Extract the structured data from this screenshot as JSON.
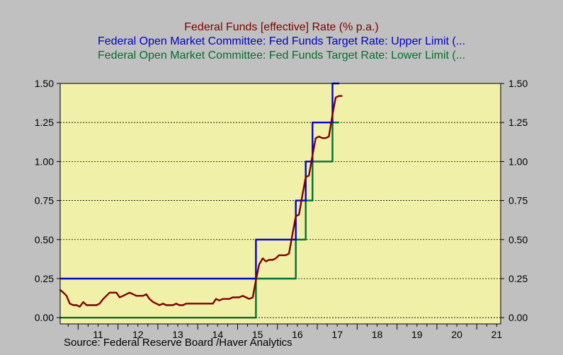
{
  "colors": {
    "background": "#c0c0c0",
    "plot_background": "#f0f0a8",
    "effective_rate": "#800000",
    "upper_limit": "#0000cc",
    "lower_limit": "#007030",
    "gridline": "#000000"
  },
  "legend": {
    "line1": "Federal Funds [effective] Rate  (% p.a.)",
    "line2": "Federal Open Market Committee: Fed Funds Target Rate: Upper Limit (...",
    "line3": "Federal Open Market Committee: Fed Funds Target Rate: Lower Limit (..."
  },
  "source": "Source:  Federal Reserve Board /Haver Analytics",
  "chart_data": {
    "type": "line",
    "title": "",
    "xlabel": "",
    "ylabel": "",
    "xlim": [
      2010.55,
      2021.6
    ],
    "ylim": [
      -0.04,
      1.5
    ],
    "grid": "horizontal dashed",
    "legend_position": "top",
    "x_ticks": [
      "11",
      "12",
      "13",
      "14",
      "15",
      "16",
      "17",
      "18",
      "19",
      "20",
      "21"
    ],
    "y_ticks_left": [
      "0.00",
      "0.25",
      "0.50",
      "0.75",
      "1.00",
      "1.25",
      "1.50"
    ],
    "y_ticks_right": [
      "0.00",
      "0.25",
      "0.50",
      "0.75",
      "1.00",
      "1.25",
      "1.50"
    ],
    "series": [
      {
        "name": "Federal Funds [effective] Rate  (% p.a.)",
        "color": "#800000",
        "x": [
          2010.54,
          2010.63,
          2010.71,
          2010.79,
          2010.88,
          2010.96,
          2011.04,
          2011.13,
          2011.21,
          2011.29,
          2011.38,
          2011.46,
          2011.54,
          2011.63,
          2011.71,
          2011.79,
          2011.88,
          2011.96,
          2012.04,
          2012.13,
          2012.21,
          2012.29,
          2012.38,
          2012.46,
          2012.54,
          2012.63,
          2012.71,
          2012.79,
          2012.88,
          2012.96,
          2013.04,
          2013.13,
          2013.21,
          2013.29,
          2013.38,
          2013.46,
          2013.54,
          2013.63,
          2013.71,
          2013.79,
          2013.88,
          2013.96,
          2014.04,
          2014.13,
          2014.21,
          2014.29,
          2014.38,
          2014.46,
          2014.54,
          2014.63,
          2014.71,
          2014.79,
          2014.88,
          2014.96,
          2015.04,
          2015.13,
          2015.21,
          2015.29,
          2015.38,
          2015.46,
          2015.54,
          2015.63,
          2015.71,
          2015.79,
          2015.88,
          2015.96,
          2016.04,
          2016.13,
          2016.21,
          2016.29,
          2016.38,
          2016.46,
          2016.54,
          2016.63,
          2016.71,
          2016.79,
          2016.88,
          2016.96,
          2017.04,
          2017.13,
          2017.21,
          2017.29,
          2017.38,
          2017.46,
          2017.54,
          2017.63
        ],
        "values": [
          0.18,
          0.16,
          0.14,
          0.09,
          0.08,
          0.08,
          0.07,
          0.1,
          0.08,
          0.08,
          0.08,
          0.08,
          0.09,
          0.12,
          0.14,
          0.16,
          0.16,
          0.16,
          0.13,
          0.14,
          0.15,
          0.16,
          0.15,
          0.14,
          0.14,
          0.14,
          0.15,
          0.12,
          0.1,
          0.09,
          0.08,
          0.09,
          0.08,
          0.08,
          0.08,
          0.09,
          0.08,
          0.08,
          0.09,
          0.09,
          0.09,
          0.09,
          0.09,
          0.09,
          0.09,
          0.09,
          0.09,
          0.12,
          0.11,
          0.12,
          0.12,
          0.12,
          0.13,
          0.13,
          0.13,
          0.14,
          0.13,
          0.12,
          0.13,
          0.24,
          0.34,
          0.38,
          0.36,
          0.37,
          0.37,
          0.38,
          0.4,
          0.4,
          0.4,
          0.41,
          0.54,
          0.65,
          0.66,
          0.79,
          0.9,
          0.91,
          1.04,
          1.15,
          1.16,
          1.15,
          1.15,
          1.16,
          1.3,
          1.41,
          1.42,
          1.42
        ]
      },
      {
        "name": "Federal Open Market Committee: Fed Funds Target Rate: Upper Limit (...",
        "color": "#0000cc",
        "x": [
          2010.54,
          2015.46,
          2015.46,
          2016.46,
          2016.46,
          2016.71,
          2016.71,
          2016.88,
          2016.88,
          2017.38,
          2017.38,
          2017.55
        ],
        "values": [
          0.25,
          0.25,
          0.5,
          0.5,
          0.75,
          0.75,
          1.0,
          1.0,
          1.25,
          1.25,
          1.5,
          1.5
        ]
      },
      {
        "name": "Federal Open Market Committee: Fed Funds Target Rate: Lower Limit (...",
        "color": "#007030",
        "x": [
          2010.54,
          2015.46,
          2015.46,
          2016.46,
          2016.46,
          2016.71,
          2016.71,
          2016.88,
          2016.88,
          2017.38,
          2017.38,
          2017.55
        ],
        "values": [
          0.0,
          0.0,
          0.25,
          0.25,
          0.5,
          0.5,
          0.75,
          0.75,
          1.0,
          1.0,
          1.25,
          1.25
        ]
      }
    ]
  }
}
